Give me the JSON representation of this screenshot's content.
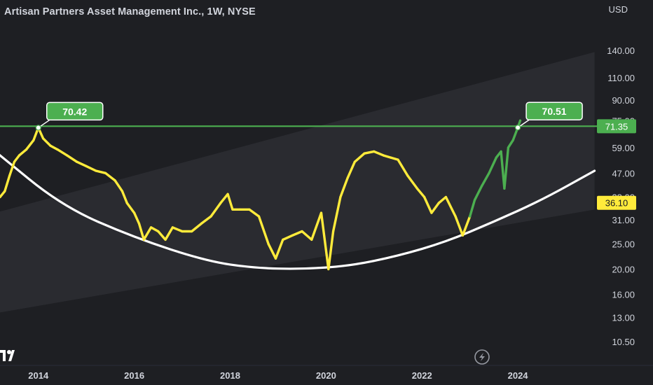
{
  "header": {
    "title": "Artisan Partners Asset Management Inc., 1W, NYSE",
    "currency": "USD"
  },
  "colors": {
    "background": "#1e1f23",
    "price_line": "#ffeb3b",
    "recent_price_line": "#4caf50",
    "resistance_line": "#4caf50",
    "channel_fill": "#2b2c31",
    "curve": "#ffffff",
    "callout_fill": "#4caf50",
    "current_price_badge": "#ffeb3b"
  },
  "icons": {
    "left_corner": "tv-logo-icon",
    "center_bottom": "lightning-bolt-icon"
  },
  "chart_data": {
    "type": "line",
    "title": "Artisan Partners Asset Management Inc., 1W, NYSE",
    "xlabel": "",
    "ylabel": "",
    "x_range": [
      2013.65,
      2025.65
    ],
    "y_range": [
      8.6,
      182
    ],
    "y_scale": "log",
    "currency": "USD",
    "y_ticks": [
      "10.50",
      "13.00",
      "16.00",
      "20.00",
      "25.00",
      "31.00",
      "38.00",
      "47.00",
      "59.00",
      "75.00",
      "90.00",
      "110.00",
      "140.00"
    ],
    "x_ticks": [
      "2014",
      "2016",
      "2018",
      "2020",
      "2022",
      "2024"
    ],
    "series": [
      {
        "x": [
          2013.2,
          2013.3,
          2013.4,
          2013.5,
          2013.6,
          2013.75,
          2013.9,
          2014.0,
          2014.1,
          2014.25,
          2014.4,
          2014.6,
          2014.8,
          2015.0,
          2015.2,
          2015.4,
          2015.6,
          2015.75,
          2015.85,
          2016.0,
          2016.1,
          2016.2,
          2016.35,
          2016.5,
          2016.65,
          2016.8,
          2017.0,
          2017.2,
          2017.4,
          2017.6,
          2017.8,
          2017.95,
          2018.05,
          2018.2,
          2018.4,
          2018.6,
          2018.8,
          2018.95,
          2019.1,
          2019.3,
          2019.5,
          2019.7,
          2019.9,
          2020.05,
          2020.15,
          2020.3,
          2020.45,
          2020.6,
          2020.8,
          2021.0,
          2021.2,
          2021.35,
          2021.5,
          2021.7,
          2021.9,
          2022.05,
          2022.2,
          2022.35,
          2022.5,
          2022.7,
          2022.85,
          2023.0
        ],
        "y": [
          38,
          40,
          46,
          52,
          55,
          58,
          63,
          70.42,
          64,
          60,
          58,
          55,
          52,
          50,
          48,
          47,
          44,
          40,
          36,
          33,
          30,
          26,
          29,
          28,
          26,
          29,
          28,
          28,
          30,
          32,
          36,
          39,
          34,
          34,
          34,
          32,
          25,
          22,
          26,
          27,
          28,
          26,
          33,
          20,
          28,
          38,
          45,
          52,
          56,
          57,
          55,
          54,
          53,
          46,
          41,
          38,
          33,
          36,
          38,
          32,
          27,
          32
        ]
      },
      {
        "x": [
          2023.0,
          2023.1,
          2023.25,
          2023.4,
          2023.55,
          2023.65,
          2023.72,
          2023.8,
          2023.9,
          2024.0,
          2024.05
        ],
        "y": [
          32,
          37,
          42,
          47,
          54,
          57,
          41,
          59,
          63,
          70.51,
          75
        ]
      }
    ],
    "lines": {
      "resistance": 71.35,
      "curve": {
        "x": [
          2013.1,
          2014.5,
          2016.0,
          2017.5,
          2018.5,
          2019.5,
          2020.5,
          2021.5,
          2022.5,
          2023.5,
          2024.5,
          2025.6
        ],
        "y": [
          57,
          35,
          26.5,
          21.5,
          20.2,
          20.0,
          20.6,
          22.5,
          25.5,
          30.5,
          37,
          48
        ]
      },
      "channel": {
        "upper": {
          "x": [
            2013.1,
            2025.6
          ],
          "y": [
            33,
            138
          ]
        },
        "lower": {
          "x": [
            2013.1,
            2025.6
          ],
          "y": [
            13.5,
            34
          ]
        }
      }
    },
    "annotations": [
      {
        "text": "70.42",
        "x": 2014.0,
        "y": 70.42
      },
      {
        "text": "70.51",
        "x": 2024.0,
        "y": 70.51
      }
    ],
    "price_badges": [
      {
        "text": "71.35",
        "y": 71.35,
        "kind": "resistance"
      },
      {
        "text": "36.10",
        "y": 36.1,
        "kind": "current"
      }
    ],
    "grid": false,
    "legend": "none"
  }
}
